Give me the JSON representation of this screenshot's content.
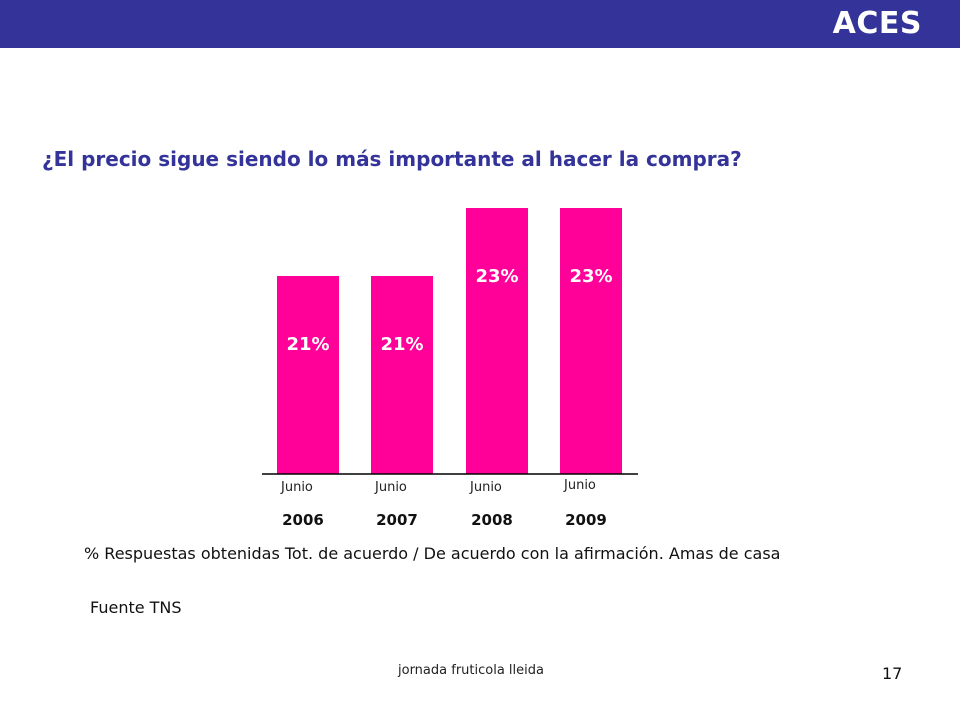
{
  "header": {
    "brand": "ACES",
    "bar_color": "#333399"
  },
  "question": "¿El precio sigue siendo lo más importante al hacer la compra?",
  "chart_data": {
    "type": "bar",
    "categories": [
      {
        "month": "Junio",
        "year": "2006"
      },
      {
        "month": "Junio",
        "year": "2007"
      },
      {
        "month": "Junio",
        "year": "2008"
      },
      {
        "month": "Junio",
        "year": "2009"
      }
    ],
    "values": [
      21,
      21,
      23,
      23
    ],
    "value_labels": [
      "21%",
      "21%",
      "23%",
      "23%"
    ],
    "unit": "%",
    "bar_color": "#ff0099",
    "label_color": "#ffffff",
    "grid": false,
    "legend": "none"
  },
  "footnote": "% Respuestas obtenidas Tot. de acuerdo / De acuerdo con la afirmación. Amas de casa",
  "source": "Fuente TNS",
  "footer": {
    "text": "jornada fruticola lleida",
    "page": "17"
  }
}
